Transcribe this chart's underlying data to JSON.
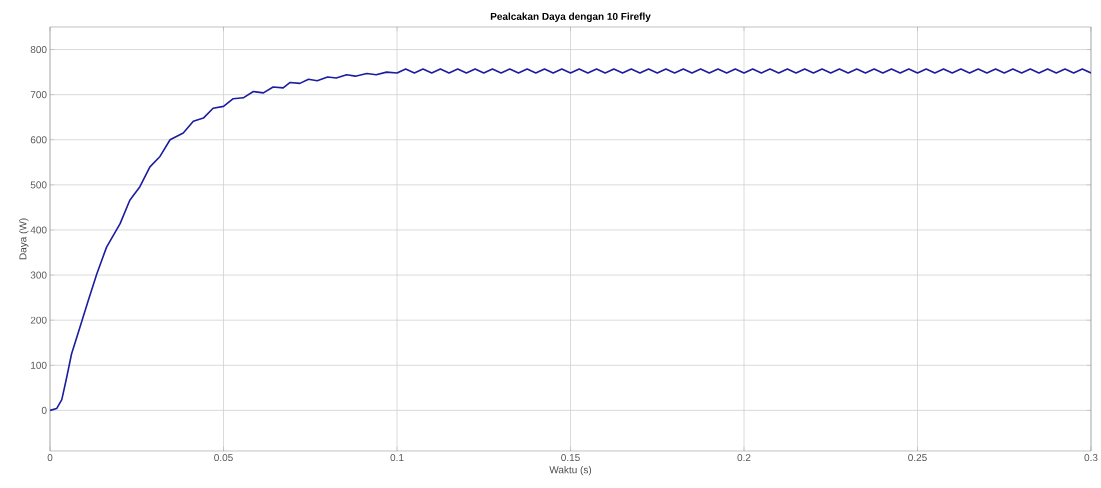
{
  "chart_data": {
    "type": "line",
    "title": "Pealcakan Daya dengan 10 Firefly",
    "xlabel": "Waktu (s)",
    "ylabel": "Daya (W)",
    "xlim": [
      0,
      0.3
    ],
    "ylim": [
      -90,
      850
    ],
    "xticks": [
      0,
      0.05,
      0.1,
      0.15,
      0.2,
      0.25,
      0.3
    ],
    "yticks": [
      0,
      100,
      200,
      300,
      400,
      500,
      600,
      700,
      800
    ],
    "grid": true,
    "marker": "none",
    "line_style": "solid",
    "series": [
      {
        "color": "#1c1ca0",
        "x": [
          0,
          0.0019,
          0.0034,
          0.0048,
          0.0062,
          0.0086,
          0.011,
          0.0135,
          0.0163,
          0.0202,
          0.023,
          0.0259,
          0.0288,
          0.0317,
          0.0346,
          0.0384,
          0.0413,
          0.0442,
          0.047,
          0.05,
          0.0528,
          0.0557,
          0.0586,
          0.0615,
          0.0643,
          0.0672,
          0.0692,
          0.072,
          0.0745,
          0.077,
          0.08,
          0.0825,
          0.0855,
          0.088,
          0.0913,
          0.094,
          0.097,
          0.1,
          0.1025,
          0.105,
          0.1075,
          0.11,
          0.1125,
          0.115,
          0.1175,
          0.12,
          0.1225,
          0.125,
          0.1275,
          0.13,
          0.1325,
          0.135,
          0.1375,
          0.14,
          0.1425,
          0.145,
          0.1475,
          0.15,
          0.1525,
          0.155,
          0.1575,
          0.16,
          0.1625,
          0.165,
          0.1675,
          0.17,
          0.1725,
          0.175,
          0.1775,
          0.18,
          0.1825,
          0.185,
          0.1875,
          0.19,
          0.1925,
          0.195,
          0.1975,
          0.2,
          0.2025,
          0.205,
          0.2075,
          0.21,
          0.2125,
          0.215,
          0.2175,
          0.22,
          0.2225,
          0.225,
          0.2275,
          0.23,
          0.2325,
          0.235,
          0.2375,
          0.24,
          0.2425,
          0.245,
          0.2475,
          0.25,
          0.2525,
          0.255,
          0.2575,
          0.26,
          0.2625,
          0.265,
          0.2675,
          0.27,
          0.2725,
          0.275,
          0.2775,
          0.28,
          0.2825,
          0.285,
          0.2875,
          0.29,
          0.2925,
          0.295,
          0.2975,
          0.3
        ],
        "values": [
          0,
          4,
          24,
          73,
          125,
          184,
          243,
          303,
          362,
          414,
          466,
          496,
          540,
          563,
          600,
          615,
          641,
          648,
          670,
          674,
          691,
          693,
          707,
          704,
          717,
          715,
          727,
          725,
          734,
          731,
          739,
          737,
          744,
          741,
          747,
          744,
          750,
          748,
          757,
          748,
          757,
          748,
          757,
          748,
          757,
          748,
          757,
          748,
          757,
          748,
          757,
          748,
          757,
          748,
          757,
          748,
          757,
          748,
          757,
          748,
          757,
          748,
          757,
          748,
          757,
          748,
          757,
          748,
          757,
          748,
          757,
          748,
          757,
          748,
          757,
          748,
          757,
          748,
          757,
          748,
          757,
          748,
          757,
          748,
          757,
          748,
          757,
          748,
          757,
          748,
          757,
          748,
          757,
          748,
          757,
          748,
          757,
          748,
          757,
          748,
          757,
          748,
          757,
          748,
          757,
          748,
          757,
          748,
          757,
          748,
          757,
          748,
          757,
          748,
          757,
          748,
          757,
          748
        ]
      }
    ]
  }
}
